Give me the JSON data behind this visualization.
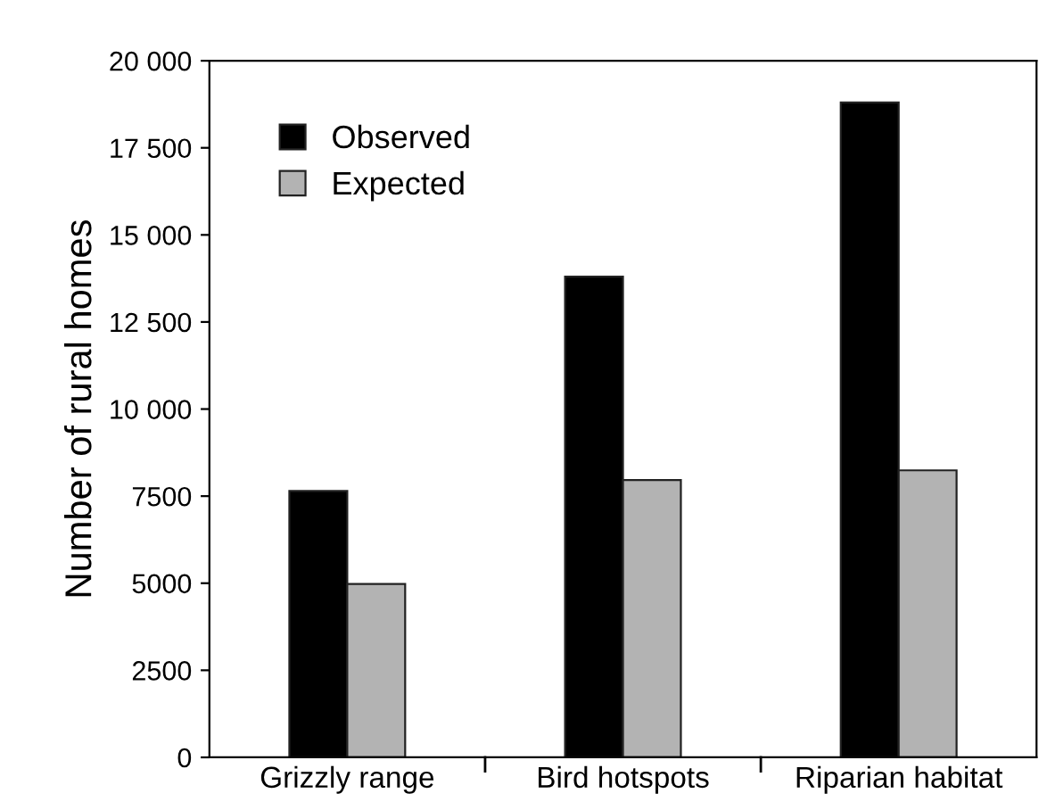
{
  "chart_data": {
    "type": "bar",
    "ylabel": "Number of rural homes",
    "categories": [
      "Grizzly range",
      "Bird hotspots",
      "Riparian habitat"
    ],
    "series": [
      {
        "name": "Observed",
        "color": "#000000",
        "values": [
          7650,
          13800,
          18800
        ]
      },
      {
        "name": "Expected",
        "color": "#b3b3b3",
        "values": [
          4980,
          7960,
          8240
        ]
      }
    ],
    "ylim": [
      0,
      20000
    ],
    "yticks": [
      0,
      2500,
      5000,
      7500,
      {
        "value": 10000,
        "label": "10 000"
      },
      {
        "value": 12500,
        "label": "12 500"
      },
      {
        "value": 15000,
        "label": "15 000"
      },
      {
        "value": 17500,
        "label": "17 500"
      },
      {
        "value": 20000,
        "label": "20 000"
      }
    ],
    "grid": false,
    "legend": "top left"
  }
}
